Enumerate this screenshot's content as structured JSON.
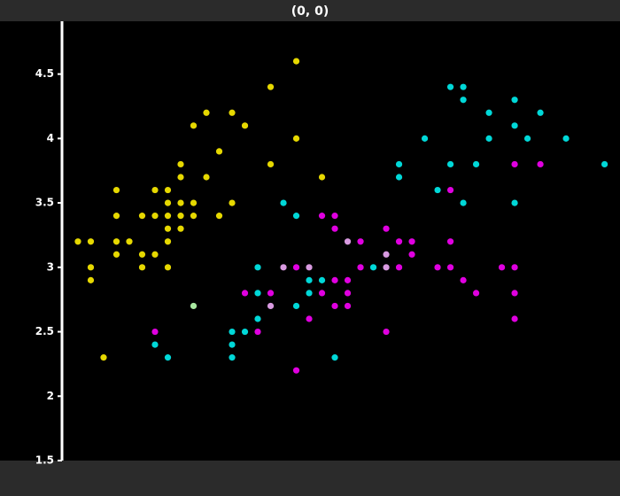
{
  "chart_data": {
    "type": "scatter",
    "title": "(0, 0)",
    "xlim": [
      -1.24,
      42.2
    ],
    "ylim": [
      1.5,
      4.91
    ],
    "yticks": [
      1.5,
      2,
      2.5,
      3,
      3.5,
      4,
      4.5
    ],
    "series": [
      {
        "color": "#e6d800",
        "x": [
          0,
          1,
          1,
          1,
          2,
          3,
          3,
          3,
          3,
          4,
          5,
          5,
          5,
          6,
          6,
          6,
          7,
          7,
          7,
          7,
          7,
          7,
          8,
          8,
          8,
          8,
          8,
          9,
          9,
          9,
          10,
          10,
          11,
          11,
          12,
          12,
          13,
          15,
          15,
          17,
          17,
          19
        ],
        "values": [
          3.2,
          3.2,
          3.0,
          2.9,
          2.3,
          3.6,
          3.4,
          3.2,
          3.1,
          3.2,
          3.4,
          3.1,
          3.0,
          3.6,
          3.4,
          3.1,
          3.6,
          3.5,
          3.4,
          3.3,
          3.2,
          3.0,
          3.8,
          3.7,
          3.5,
          3.4,
          3.3,
          4.1,
          3.5,
          3.4,
          4.2,
          3.7,
          3.9,
          3.4,
          4.2,
          3.5,
          4.1,
          4.4,
          3.8,
          4.6,
          4.0,
          3.7
        ]
      },
      {
        "color": "#00d8d8",
        "x": [
          6,
          7,
          12,
          12,
          12,
          13,
          14,
          14,
          14,
          16,
          17,
          17,
          18,
          18,
          19,
          20,
          23,
          25,
          25,
          27,
          28,
          29,
          29,
          30,
          30,
          30,
          31,
          32,
          32,
          34,
          34,
          34,
          35,
          36,
          38,
          41
        ],
        "values": [
          2.4,
          2.3,
          2.5,
          2.4,
          2.3,
          2.5,
          3.0,
          2.8,
          2.6,
          3.5,
          3.4,
          2.7,
          2.9,
          2.8,
          2.9,
          2.3,
          3.0,
          3.8,
          3.7,
          4.0,
          3.6,
          4.4,
          3.8,
          4.4,
          4.3,
          3.5,
          3.8,
          4.2,
          4.0,
          4.3,
          4.1,
          3.5,
          4.0,
          4.2,
          4.0,
          3.8
        ]
      },
      {
        "color": "#e000e0",
        "x": [
          6,
          13,
          14,
          15,
          17,
          17,
          18,
          19,
          19,
          20,
          20,
          20,
          20,
          21,
          21,
          21,
          22,
          22,
          24,
          24,
          25,
          25,
          26,
          26,
          28,
          29,
          29,
          29,
          30,
          31,
          33,
          34,
          34,
          34,
          34,
          36
        ],
        "values": [
          2.5,
          2.8,
          2.5,
          2.8,
          3.0,
          2.2,
          2.6,
          3.4,
          2.8,
          3.4,
          3.3,
          2.9,
          2.7,
          2.9,
          2.8,
          2.7,
          3.2,
          3.0,
          3.3,
          2.5,
          3.2,
          3.0,
          3.2,
          3.1,
          3.0,
          3.6,
          3.2,
          3.0,
          2.9,
          2.8,
          3.0,
          3.8,
          3.0,
          2.8,
          2.6,
          3.8
        ]
      },
      {
        "color": "#d89ae0",
        "x": [
          15,
          16,
          18,
          21,
          24,
          24
        ],
        "values": [
          2.7,
          3.0,
          3.0,
          3.2,
          3.1,
          3.0
        ]
      },
      {
        "color": "#a8e8a0",
        "x": [
          9
        ],
        "values": [
          2.7
        ]
      }
    ]
  }
}
